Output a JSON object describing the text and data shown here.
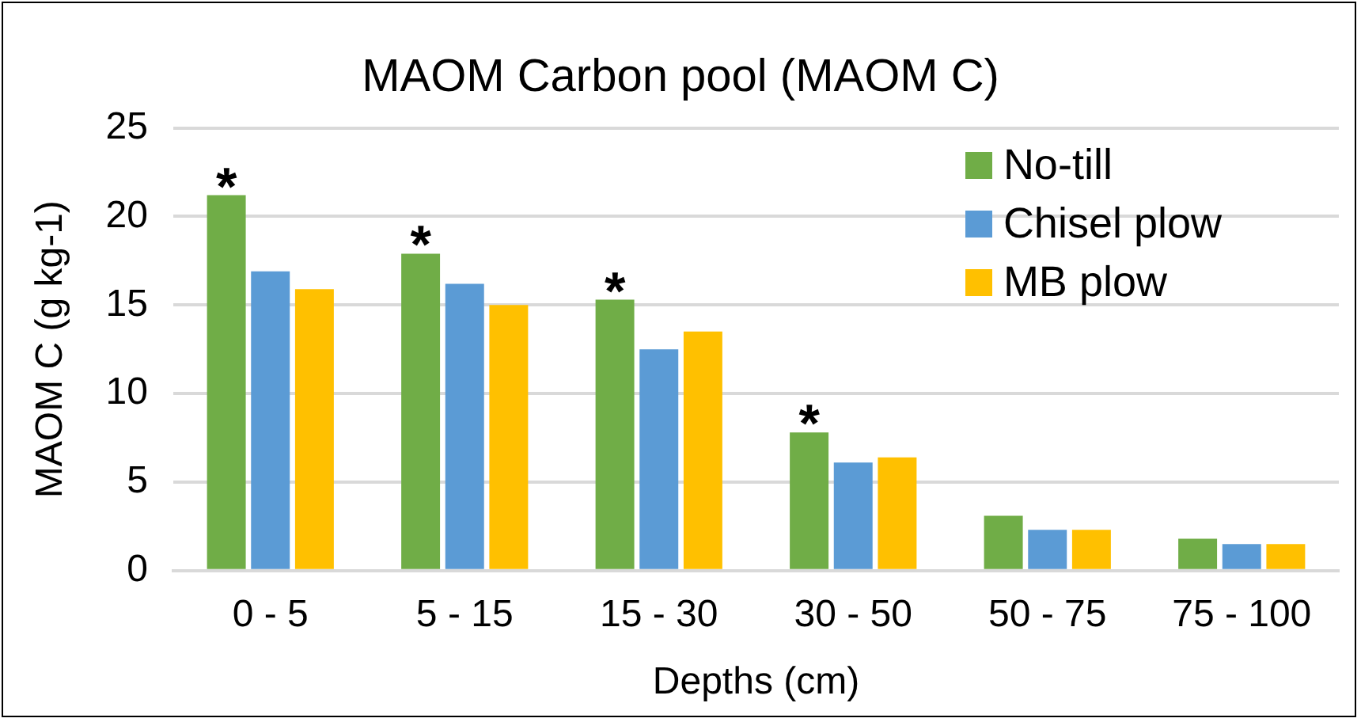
{
  "chart_data": {
    "type": "bar",
    "title": "MAOM Carbon pool (MAOM C)",
    "xlabel": "Depths (cm)",
    "ylabel": "MAOM C (g kg-1)",
    "categories": [
      "0 - 5",
      "5 - 15",
      "15 - 30",
      "30 - 50",
      "50 - 75",
      "75 - 100"
    ],
    "series": [
      {
        "name": "No-till",
        "color": "#70ad47",
        "values": [
          21.2,
          17.9,
          15.3,
          7.8,
          3.1,
          1.8
        ]
      },
      {
        "name": "Chisel plow",
        "color": "#5b9bd5",
        "values": [
          16.9,
          16.2,
          12.5,
          6.1,
          2.3,
          1.5
        ]
      },
      {
        "name": "MB plow",
        "color": "#ffc000",
        "values": [
          15.9,
          15.0,
          13.5,
          6.4,
          2.3,
          1.5
        ]
      }
    ],
    "ylim": [
      0,
      25
    ],
    "yticks": [
      0,
      5,
      10,
      15,
      20,
      25
    ],
    "grid": "y",
    "legend": "top right",
    "annotations": [
      "*",
      "*",
      "*",
      "*"
    ]
  }
}
